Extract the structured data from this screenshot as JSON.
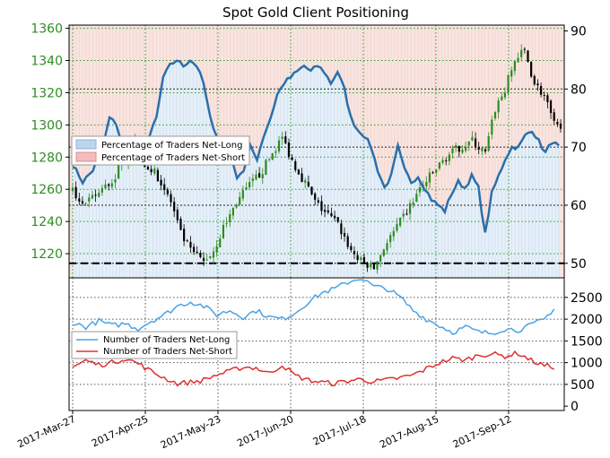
{
  "chart_data": [
    {
      "type": "candlestick-line",
      "title": "Spot Gold Client Positioning",
      "x_ticks": [
        "2017-Mar-27",
        "2017-Apr-25",
        "2017-May-23",
        "2017-Jun-20",
        "2017-Jul-18",
        "2017-Aug-15",
        "2017-Sep-12"
      ],
      "y_left_ticks": [
        "1220",
        "1240",
        "1260",
        "1280",
        "1300",
        "1320",
        "1340",
        "1360"
      ],
      "y_left_range": [
        1205,
        1362
      ],
      "y_right_ticks": [
        "50",
        "60",
        "70",
        "80",
        "90"
      ],
      "y_right_range": [
        47.5,
        91
      ],
      "reference_lines_right": [
        50,
        60,
        70,
        80
      ],
      "dashed_level_right": 50,
      "legend": [
        "Percentage of Traders Net-Long",
        "Percentage of Traders Net-Short"
      ],
      "legend_placement": "left",
      "grid": true,
      "colors": {
        "up": "#2e8b22",
        "down": "#000000",
        "line": "#2a6fad",
        "long_fill": "#ddeaf6",
        "short_fill": "#f8dcdc"
      },
      "price_anchors": [
        [
          0,
          1258
        ],
        [
          4,
          1250
        ],
        [
          8,
          1258
        ],
        [
          12,
          1265
        ],
        [
          16,
          1280
        ],
        [
          19,
          1292
        ],
        [
          22,
          1276
        ],
        [
          26,
          1268
        ],
        [
          30,
          1252
        ],
        [
          33,
          1232
        ],
        [
          36,
          1222
        ],
        [
          40,
          1215
        ],
        [
          43,
          1222
        ],
        [
          46,
          1236
        ],
        [
          50,
          1252
        ],
        [
          54,
          1262
        ],
        [
          58,
          1272
        ],
        [
          62,
          1286
        ],
        [
          64,
          1292
        ],
        [
          67,
          1278
        ],
        [
          71,
          1264
        ],
        [
          74,
          1252
        ],
        [
          78,
          1244
        ],
        [
          81,
          1238
        ],
        [
          85,
          1222
        ],
        [
          88,
          1215
        ],
        [
          92,
          1211
        ],
        [
          95,
          1224
        ],
        [
          99,
          1236
        ],
        [
          102,
          1246
        ],
        [
          106,
          1260
        ],
        [
          110,
          1270
        ],
        [
          114,
          1280
        ],
        [
          118,
          1286
        ],
        [
          122,
          1290
        ],
        [
          126,
          1282
        ],
        [
          129,
          1310
        ],
        [
          132,
          1322
        ],
        [
          135,
          1340
        ],
        [
          138,
          1346
        ],
        [
          141,
          1326
        ],
        [
          144,
          1318
        ],
        [
          147,
          1300
        ],
        [
          150,
          1294
        ]
      ],
      "percent_long_anchors": [
        [
          0,
          67
        ],
        [
          3,
          64
        ],
        [
          6,
          66
        ],
        [
          9,
          70
        ],
        [
          11,
          75
        ],
        [
          13,
          74
        ],
        [
          15,
          70
        ],
        [
          17,
          69
        ],
        [
          19,
          70
        ],
        [
          21,
          70
        ],
        [
          23,
          72
        ],
        [
          25,
          75
        ],
        [
          27,
          82
        ],
        [
          29,
          84
        ],
        [
          31,
          85
        ],
        [
          33,
          84
        ],
        [
          35,
          85
        ],
        [
          37,
          84
        ],
        [
          39,
          81
        ],
        [
          41,
          75
        ],
        [
          43,
          72
        ],
        [
          45,
          71
        ],
        [
          47,
          68
        ],
        [
          49,
          65
        ],
        [
          51,
          66
        ],
        [
          53,
          70
        ],
        [
          55,
          68
        ],
        [
          57,
          72
        ],
        [
          59,
          75
        ],
        [
          61,
          79
        ],
        [
          63,
          81
        ],
        [
          65,
          82
        ],
        [
          67,
          83
        ],
        [
          69,
          84
        ],
        [
          71,
          83
        ],
        [
          73,
          84
        ],
        [
          75,
          83
        ],
        [
          77,
          81
        ],
        [
          79,
          83
        ],
        [
          81,
          80
        ],
        [
          83,
          75
        ],
        [
          85,
          73
        ],
        [
          87,
          72
        ],
        [
          89,
          70
        ],
        [
          91,
          66
        ],
        [
          93,
          63
        ],
        [
          95,
          65
        ],
        [
          97,
          70
        ],
        [
          99,
          66
        ],
        [
          101,
          64
        ],
        [
          103,
          65
        ],
        [
          105,
          63
        ],
        [
          107,
          61
        ],
        [
          109,
          60
        ],
        [
          111,
          59
        ],
        [
          113,
          62
        ],
        [
          115,
          64
        ],
        [
          117,
          63
        ],
        [
          119,
          65
        ],
        [
          121,
          63
        ],
        [
          123,
          55
        ],
        [
          125,
          62
        ],
        [
          127,
          65
        ],
        [
          129,
          68
        ],
        [
          131,
          70
        ],
        [
          133,
          70
        ],
        [
          135,
          72
        ],
        [
          137,
          73
        ],
        [
          139,
          71
        ],
        [
          141,
          69
        ],
        [
          143,
          71
        ],
        [
          145,
          70
        ]
      ]
    },
    {
      "type": "line",
      "y_ticks": [
        "0",
        "500",
        "1000",
        "1500",
        "2000",
        "2500"
      ],
      "y_range": [
        -100,
        2950
      ],
      "legend": [
        "Number of Traders Net-Long",
        "Number of Traders Net-Short"
      ],
      "legend_placement": "left",
      "grid": true,
      "series": [
        {
          "name": "Number of Traders Net-Long",
          "color": "#4aa3e6",
          "anchors": [
            [
              0,
              1920
            ],
            [
              4,
              1820
            ],
            [
              8,
              1960
            ],
            [
              12,
              1850
            ],
            [
              16,
              1900
            ],
            [
              20,
              1780
            ],
            [
              24,
              1960
            ],
            [
              28,
              2100
            ],
            [
              32,
              2300
            ],
            [
              36,
              2400
            ],
            [
              40,
              2300
            ],
            [
              44,
              2100
            ],
            [
              48,
              2200
            ],
            [
              52,
              2050
            ],
            [
              56,
              2200
            ],
            [
              60,
              2050
            ],
            [
              64,
              2000
            ],
            [
              68,
              2150
            ],
            [
              72,
              2400
            ],
            [
              76,
              2600
            ],
            [
              80,
              2700
            ],
            [
              84,
              2850
            ],
            [
              88,
              2950
            ],
            [
              92,
              2750
            ],
            [
              96,
              2700
            ],
            [
              100,
              2500
            ],
            [
              104,
              2200
            ],
            [
              108,
              2000
            ],
            [
              112,
              1850
            ],
            [
              116,
              1700
            ],
            [
              120,
              1820
            ],
            [
              124,
              1700
            ],
            [
              128,
              1680
            ],
            [
              132,
              1780
            ],
            [
              136,
              1750
            ],
            [
              140,
              1860
            ],
            [
              144,
              2000
            ],
            [
              147,
              2250
            ]
          ]
        },
        {
          "name": "Number of Traders Net-Short",
          "color": "#e03030",
          "anchors": [
            [
              0,
              900
            ],
            [
              4,
              1050
            ],
            [
              8,
              950
            ],
            [
              12,
              1000
            ],
            [
              16,
              1100
            ],
            [
              20,
              980
            ],
            [
              24,
              800
            ],
            [
              28,
              650
            ],
            [
              32,
              520
            ],
            [
              36,
              550
            ],
            [
              40,
              600
            ],
            [
              44,
              720
            ],
            [
              48,
              800
            ],
            [
              52,
              900
            ],
            [
              56,
              880
            ],
            [
              60,
              750
            ],
            [
              64,
              950
            ],
            [
              68,
              700
            ],
            [
              72,
              600
            ],
            [
              76,
              550
            ],
            [
              80,
              520
            ],
            [
              84,
              580
            ],
            [
              88,
              620
            ],
            [
              92,
              560
            ],
            [
              96,
              600
            ],
            [
              100,
              650
            ],
            [
              104,
              720
            ],
            [
              108,
              860
            ],
            [
              112,
              1000
            ],
            [
              116,
              1100
            ],
            [
              120,
              1060
            ],
            [
              124,
              1180
            ],
            [
              128,
              1200
            ],
            [
              132,
              1150
            ],
            [
              136,
              1220
            ],
            [
              140,
              1050
            ],
            [
              144,
              930
            ],
            [
              147,
              900
            ]
          ]
        }
      ]
    }
  ]
}
